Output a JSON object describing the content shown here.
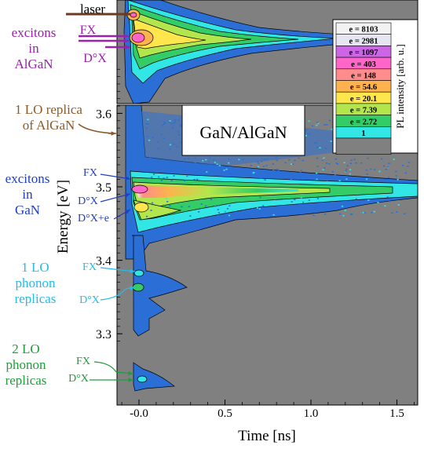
{
  "chart_data": {
    "type": "heatmap",
    "title": "GaN/AlGaN",
    "xlabel": "Time  [ns]",
    "ylabel": "Energy  [eV]",
    "xlim": [
      -0.13,
      1.66
    ],
    "ylim": [
      3.285,
      3.66
    ],
    "x_ticks": [
      {
        "value": -0.0,
        "label": "-0.0"
      },
      {
        "value": 0.5,
        "label": "0.5"
      },
      {
        "value": 1.0,
        "label": "1.0"
      },
      {
        "value": 1.5,
        "label": "1.5"
      }
    ],
    "y_ticks": [
      {
        "value": 3.3,
        "label": "3.3"
      },
      {
        "value": 3.4,
        "label": "3.4"
      },
      {
        "value": 3.5,
        "label": "3.5"
      },
      {
        "value": 3.6,
        "label": "3.6"
      }
    ],
    "colorbar": {
      "label": "PL intensity  [arb. u.]",
      "levels": [
        {
          "label": "e = 8103",
          "color": "#f2f2f2"
        },
        {
          "label": "e = 2981",
          "color": "#e6e6f2"
        },
        {
          "label": "e = 1097",
          "color": "#cc66e6"
        },
        {
          "label": "e = 403",
          "color": "#ff66c8"
        },
        {
          "label": "e = 148",
          "color": "#ff8c8c"
        },
        {
          "label": "e = 54.6",
          "color": "#ffb24d"
        },
        {
          "label": "e = 20.1",
          "color": "#ffe64d"
        },
        {
          "label": "e = 7.39",
          "color": "#b3e64d"
        },
        {
          "label": "e = 2.72",
          "color": "#33cc66"
        },
        {
          "label": "1",
          "color": "#33e6e6"
        },
        {
          "label": "",
          "color": "#808080"
        }
      ]
    },
    "annotations": {
      "laser": {
        "label": "laser",
        "color": "#6b3b22"
      },
      "algan_excitons": {
        "label_lines": [
          "excitons",
          "in",
          "AlGaN"
        ],
        "color": "#9922aa",
        "peaks": [
          "FX",
          "D°X"
        ]
      },
      "algan_lo_replica": {
        "label_lines": [
          "1 LO replica",
          "of AlGaN"
        ],
        "color": "#8b5a2b"
      },
      "gan_excitons": {
        "label_lines": [
          "excitons",
          "in",
          "GaN"
        ],
        "color": "#1f3fbf",
        "peaks": [
          "FX",
          "D°X",
          "D°X+e"
        ]
      },
      "gan_1lo": {
        "label_lines": [
          "1 LO",
          "phonon",
          "replicas"
        ],
        "color": "#22bbee",
        "peaks": [
          "FX",
          "D°X"
        ]
      },
      "gan_2lo": {
        "label_lines": [
          "2 LO",
          "phonon",
          "replicas"
        ],
        "color": "#1f9e3a",
        "peaks": [
          "FX",
          "D°X"
        ]
      }
    },
    "colors": {
      "plot_background": "#808080",
      "base_emission": "#2b6fd6",
      "contour_line": "#000000"
    }
  }
}
